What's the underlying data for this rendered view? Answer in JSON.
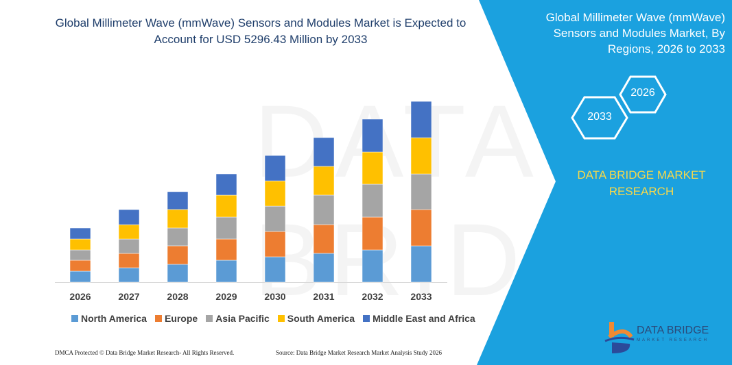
{
  "title": "Global Millimeter Wave (mmWave) Sensors and Modules Market is Expected to Account for USD 5296.43 Million by 2033",
  "panel": {
    "title": "Global Millimeter Wave (mmWave) Sensors and Modules Market, By Regions, 2026 to 2033",
    "hex_a": "2026",
    "hex_b": "2033",
    "brand": "DATA BRIDGE MARKET RESEARCH",
    "logo_text": "DATA BRIDGE",
    "logo_sub": "MARKET RESEARCH",
    "color": "#1ba1df"
  },
  "watermark": "DATA BRIDGE",
  "footer": {
    "left": "DMCA Protected © Data Bridge Market Research-  All Rights Reserved.",
    "right": "Source: Data Bridge Market Research  Market Analysis Study 2026"
  },
  "chart_data": {
    "type": "bar",
    "stacked": true,
    "title": "Global Millimeter Wave (mmWave) Sensors and Modules Market is Expected to Account for USD 5296.43 Million by 2033",
    "categories": [
      "2026",
      "2027",
      "2028",
      "2029",
      "2030",
      "2031",
      "2032",
      "2033"
    ],
    "series": [
      {
        "name": "North America",
        "color": "#5b9bd5",
        "values": [
          321,
          421,
          522,
          642,
          742,
          843,
          943,
          1063
        ]
      },
      {
        "name": "Europe",
        "color": "#ed7d31",
        "values": [
          321,
          421,
          542,
          622,
          742,
          843,
          963,
          1063
        ]
      },
      {
        "name": "Asia Pacific",
        "color": "#a5a5a5",
        "values": [
          301,
          421,
          522,
          642,
          742,
          863,
          963,
          1043
        ]
      },
      {
        "name": "South America",
        "color": "#ffc000",
        "values": [
          321,
          421,
          542,
          642,
          742,
          843,
          943,
          1063
        ]
      },
      {
        "name": "Middle East and Africa",
        "color": "#4472c4",
        "values": [
          321,
          441,
          522,
          622,
          742,
          843,
          963,
          1063
        ]
      }
    ],
    "y_axis_visible": false,
    "grid": false,
    "legend": "bottom"
  }
}
